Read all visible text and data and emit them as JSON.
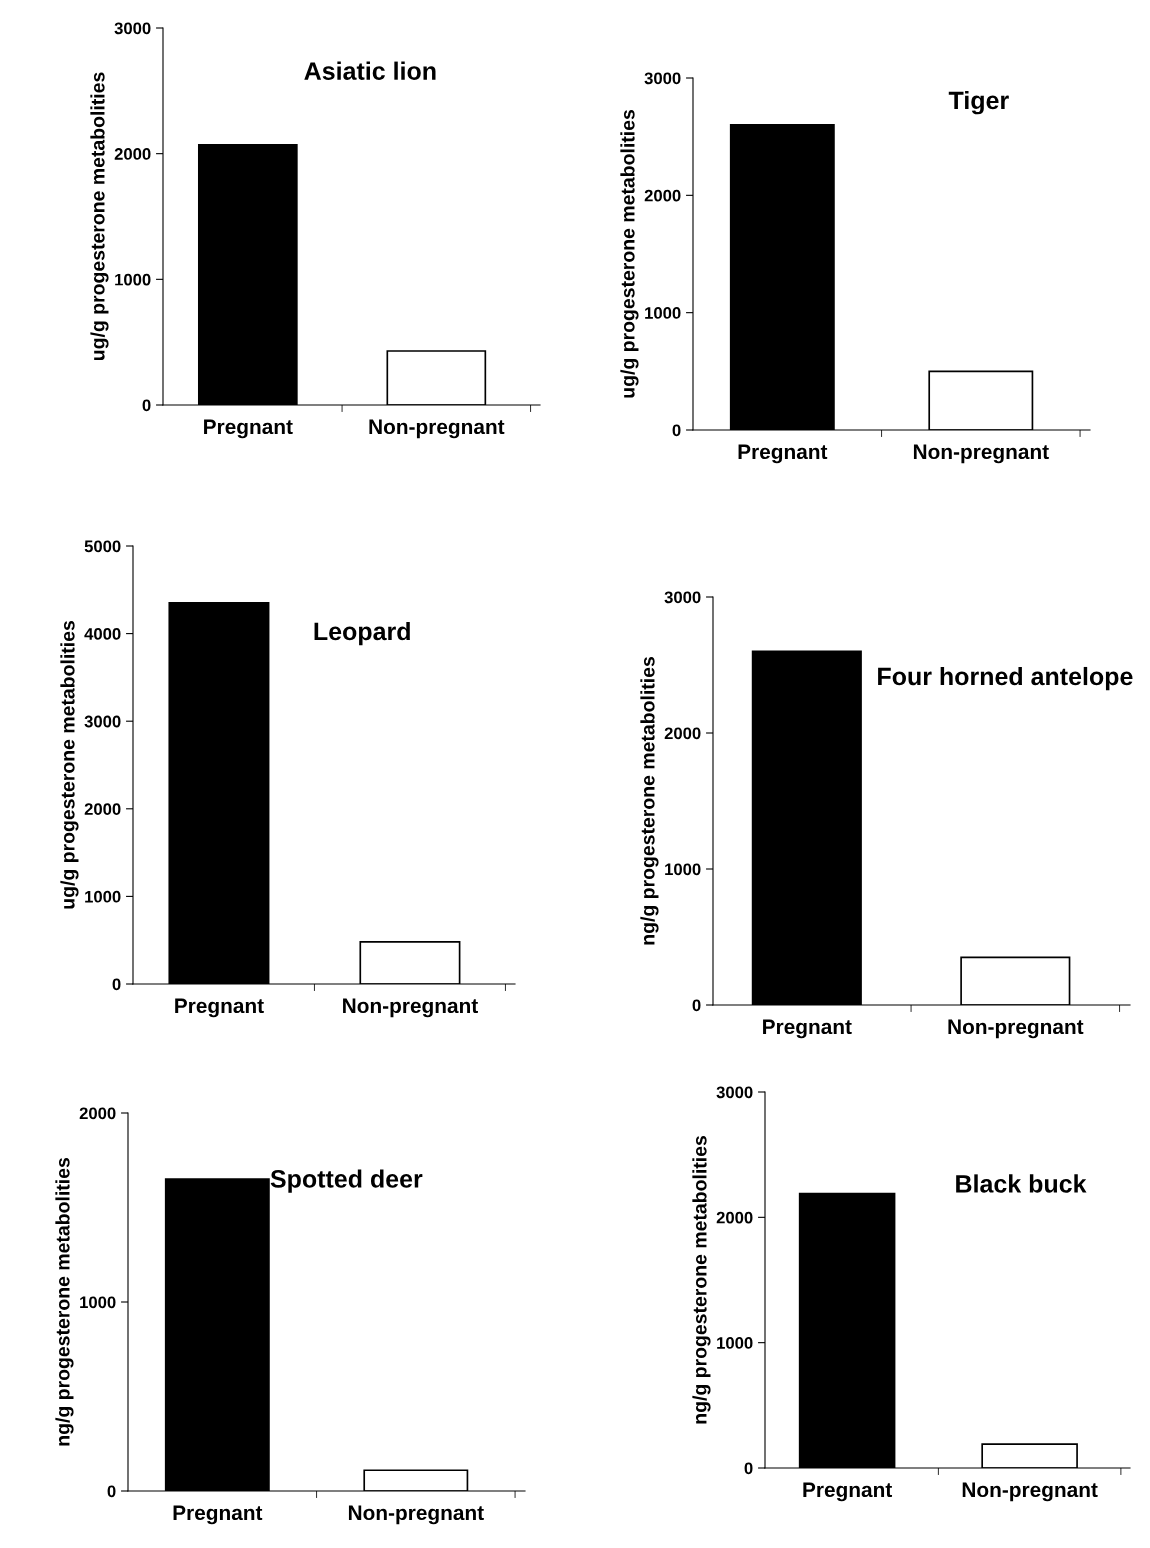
{
  "chart_data": [
    {
      "type": "bar",
      "title": "Asiatic lion",
      "ylabel": "ug/g progesterone metabolities",
      "categories": [
        "Pregnant",
        "Non-pregnant"
      ],
      "values": [
        2070,
        430
      ],
      "colors": [
        "#000000",
        "#ffffff"
      ],
      "ylim": [
        0,
        3000
      ],
      "yticks": [
        0,
        1000,
        2000,
        3000
      ],
      "grid": false,
      "legend": false
    },
    {
      "type": "bar",
      "title": "Tiger",
      "ylabel": "ug/g progesterone metabolities",
      "categories": [
        "Pregnant",
        "Non-pregnant"
      ],
      "values": [
        2600,
        500
      ],
      "colors": [
        "#000000",
        "#ffffff"
      ],
      "ylim": [
        0,
        3000
      ],
      "yticks": [
        0,
        1000,
        2000,
        3000
      ],
      "grid": false,
      "legend": false
    },
    {
      "type": "bar",
      "title": "Leopard",
      "ylabel": "ug/g progesterone metabolities",
      "categories": [
        "Pregnant",
        "Non-pregnant"
      ],
      "values": [
        4350,
        480
      ],
      "colors": [
        "#000000",
        "#ffffff"
      ],
      "ylim": [
        0,
        5000
      ],
      "yticks": [
        0,
        1000,
        2000,
        3000,
        4000,
        5000
      ],
      "grid": false,
      "legend": false
    },
    {
      "type": "bar",
      "title": "Four horned antelope",
      "ylabel": "ng/g progesterone metabolities",
      "categories": [
        "Pregnant",
        "Non-pregnant"
      ],
      "values": [
        2600,
        350
      ],
      "colors": [
        "#000000",
        "#ffffff"
      ],
      "ylim": [
        0,
        3000
      ],
      "yticks": [
        0,
        1000,
        2000,
        3000
      ],
      "grid": false,
      "legend": false
    },
    {
      "type": "bar",
      "title": "Spotted deer",
      "ylabel": "ng/g progesterone metabolities",
      "categories": [
        "Pregnant",
        "Non-pregnant"
      ],
      "values": [
        1650,
        110
      ],
      "colors": [
        "#000000",
        "#ffffff"
      ],
      "ylim": [
        0,
        2000
      ],
      "yticks": [
        0,
        1000,
        2000
      ],
      "grid": false,
      "legend": false
    },
    {
      "type": "bar",
      "title": "Black buck",
      "ylabel": "ng/g progesterone metabolities",
      "categories": [
        "Pregnant",
        "Non-pregnant"
      ],
      "values": [
        2190,
        190
      ],
      "colors": [
        "#000000",
        "#ffffff"
      ],
      "ylim": [
        0,
        3000
      ],
      "yticks": [
        0,
        1000,
        2000,
        3000
      ],
      "grid": false,
      "legend": false
    }
  ]
}
